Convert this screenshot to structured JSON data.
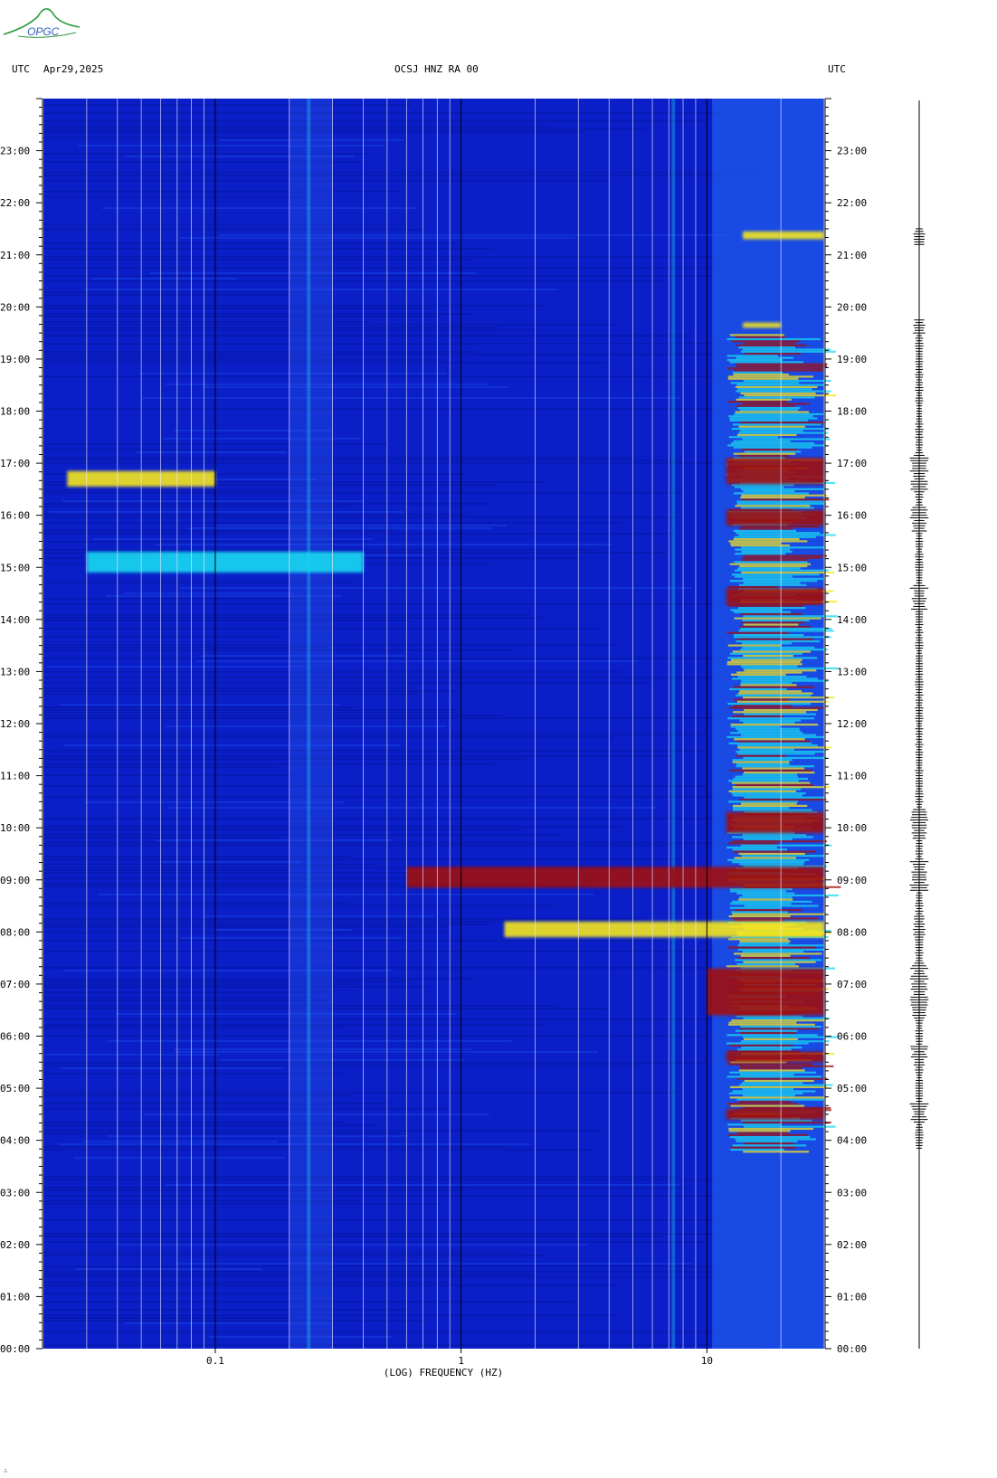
{
  "header": {
    "left_tz": "UTC",
    "date": "Apr29,2025",
    "station": "OCSJ HNZ RA 00",
    "right_tz": "UTC"
  },
  "logo": {
    "text": "OPGC"
  },
  "colors": {
    "background": "#ffffff",
    "spectrogram_low": "#0a1fc8",
    "spectrogram_mid": "#19d8f0",
    "spectrogram_high": "#f5e61e",
    "spectrogram_peak": "#a01010",
    "gridline_minor": "#e8e8ff",
    "gridline_decade": "#000000"
  },
  "chart_data": {
    "type": "heatmap",
    "xlabel": "(LOG) FREQUENCY (HZ)",
    "ylabel": "",
    "x_scale": "log",
    "xlim": [
      0.02,
      30
    ],
    "x_ticks": [
      {
        "value": 0.1,
        "label": "0.1"
      },
      {
        "value": 1,
        "label": "1"
      },
      {
        "value": 10,
        "label": "10"
      }
    ],
    "minor_grid_values": [
      0.03,
      0.04,
      0.05,
      0.06,
      0.07,
      0.08,
      0.09,
      0.2,
      0.3,
      0.4,
      0.5,
      0.6,
      0.7,
      0.8,
      0.9,
      2,
      3,
      4,
      5,
      6,
      7,
      8,
      9,
      20,
      30
    ],
    "ylim_hours": [
      0,
      24
    ],
    "y_ticks": [
      "00:00",
      "01:00",
      "02:00",
      "03:00",
      "04:00",
      "05:00",
      "06:00",
      "07:00",
      "08:00",
      "09:00",
      "10:00",
      "11:00",
      "12:00",
      "13:00",
      "14:00",
      "15:00",
      "16:00",
      "17:00",
      "18:00",
      "19:00",
      "20:00",
      "21:00",
      "22:00",
      "23:00"
    ],
    "intensity_scale": [
      "low",
      "mid",
      "high",
      "peak"
    ],
    "events": [
      {
        "t_start": 16.55,
        "t_end": 16.85,
        "f_min": 0.025,
        "f_max": 0.1,
        "level": "high"
      },
      {
        "t_start": 14.9,
        "t_end": 15.3,
        "f_min": 0.03,
        "f_max": 0.4,
        "level": "mid"
      },
      {
        "t_start": 8.85,
        "t_end": 9.25,
        "f_min": 0.6,
        "f_max": 30,
        "level": "peak"
      },
      {
        "t_start": 7.9,
        "t_end": 8.2,
        "f_min": 1.5,
        "f_max": 30,
        "level": "high"
      },
      {
        "t_start": 6.4,
        "t_end": 7.3,
        "f_min": 10,
        "f_max": 30,
        "level": "peak"
      },
      {
        "t_start": 4.4,
        "t_end": 4.6,
        "f_min": 12,
        "f_max": 30,
        "level": "peak"
      },
      {
        "t_start": 5.5,
        "t_end": 5.7,
        "f_min": 12,
        "f_max": 30,
        "level": "peak"
      },
      {
        "t_start": 9.9,
        "t_end": 10.3,
        "f_min": 12,
        "f_max": 30,
        "level": "peak"
      },
      {
        "t_start": 14.3,
        "t_end": 14.6,
        "f_min": 12,
        "f_max": 30,
        "level": "peak"
      },
      {
        "t_start": 15.8,
        "t_end": 16.1,
        "f_min": 12,
        "f_max": 30,
        "level": "peak"
      },
      {
        "t_start": 16.6,
        "t_end": 17.1,
        "f_min": 12,
        "f_max": 30,
        "level": "peak"
      },
      {
        "t_start": 19.6,
        "t_end": 19.7,
        "f_min": 14,
        "f_max": 20,
        "level": "high"
      },
      {
        "t_start": 21.3,
        "t_end": 21.45,
        "f_min": 14,
        "f_max": 30,
        "level": "high"
      }
    ],
    "persistent_lines": [
      {
        "f": 7.3,
        "level": "mid"
      },
      {
        "f": 0.24,
        "level": "mid"
      }
    ],
    "active_band": {
      "f_min": 12,
      "f_max": 30,
      "t_start": 3.8,
      "t_end": 19.5
    }
  }
}
